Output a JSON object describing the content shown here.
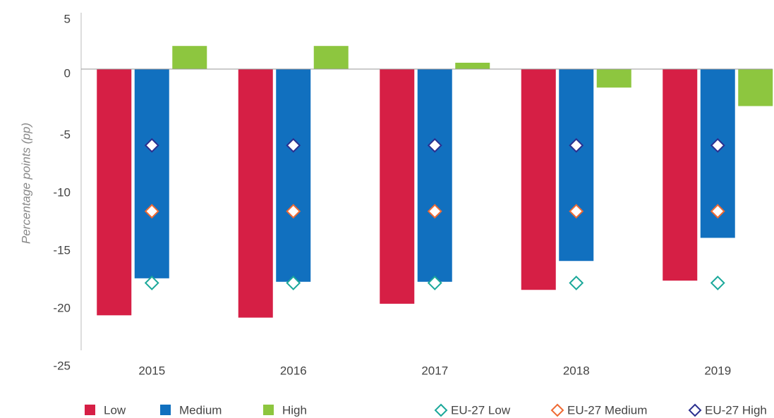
{
  "chart_data": {
    "type": "bar",
    "y_label": "Percentage points (pp)",
    "categories": [
      "2015",
      "2016",
      "2017",
      "2018",
      "2019"
    ],
    "series": [
      {
        "name": "Low",
        "color": "#d61f45",
        "mark": "bar",
        "values": [
          -21.3,
          -21.5,
          -20.3,
          -19.1,
          -18.3
        ]
      },
      {
        "name": "Medium",
        "color": "#1170bf",
        "mark": "bar",
        "values": [
          -18.1,
          -18.4,
          -18.4,
          -16.6,
          -14.6
        ]
      },
      {
        "name": "High",
        "color": "#8dc63f",
        "mark": "bar",
        "values": [
          2,
          2,
          0.55,
          -1.6,
          -3.2
        ]
      },
      {
        "name": "EU-27 Low",
        "color": "#1aa89a",
        "mark": "diamond",
        "values": [
          -18.5,
          -18.5,
          -18.5,
          -18.5,
          -18.5
        ]
      },
      {
        "name": "EU-27 Medium",
        "color": "#ef6a33",
        "mark": "diamond",
        "values": [
          -12.3,
          -12.3,
          -12.3,
          -12.3,
          -12.3
        ]
      },
      {
        "name": "EU-27 High",
        "color": "#2b2f8f",
        "mark": "diamond",
        "values": [
          -6.6,
          -6.6,
          -6.6,
          -6.6,
          -6.6
        ]
      }
    ],
    "ylim": [
      -25,
      5
    ],
    "yticks": [
      5,
      0,
      -5,
      -10,
      -15,
      -20,
      -25
    ],
    "grid": false,
    "legend": "bottom"
  }
}
